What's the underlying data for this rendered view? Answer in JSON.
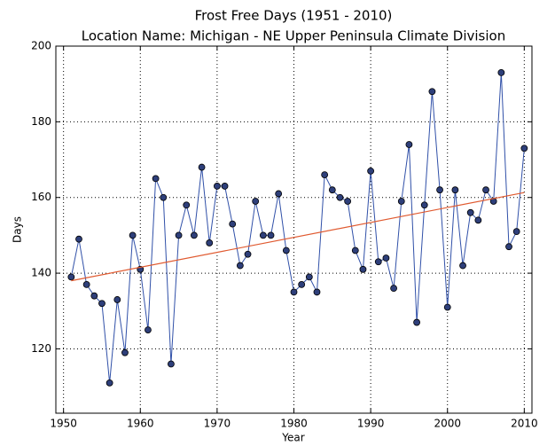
{
  "chart_data": {
    "type": "line",
    "title": "Frost Free Days (1951 - 2010)",
    "subtitle": "Location Name: Michigan - NE Upper Peninsula Climate Division",
    "x_label": "Year",
    "y_label": "Days",
    "x": [
      1951,
      1952,
      1953,
      1954,
      1955,
      1956,
      1957,
      1958,
      1959,
      1960,
      1961,
      1962,
      1963,
      1964,
      1965,
      1966,
      1967,
      1968,
      1969,
      1970,
      1971,
      1972,
      1973,
      1974,
      1975,
      1976,
      1977,
      1978,
      1979,
      1980,
      1981,
      1982,
      1983,
      1984,
      1985,
      1986,
      1987,
      1988,
      1989,
      1990,
      1991,
      1992,
      1993,
      1994,
      1995,
      1996,
      1997,
      1998,
      1999,
      2000,
      2001,
      2002,
      2003,
      2004,
      2005,
      2006,
      2007,
      2008,
      2009,
      2010
    ],
    "series": [
      {
        "color": "#3050a8",
        "marker_color": "#2e3f7a",
        "values": [
          139,
          149,
          137,
          134,
          132,
          111,
          133,
          119,
          150,
          141,
          125,
          165,
          160,
          116,
          150,
          158,
          150,
          168,
          148,
          163,
          163,
          153,
          142,
          145,
          159,
          150,
          150,
          161,
          146,
          135,
          137,
          139,
          135,
          166,
          162,
          160,
          159,
          146,
          141,
          167,
          143,
          144,
          136,
          159,
          174,
          127,
          158,
          188,
          162,
          131,
          162,
          142,
          156,
          154,
          162,
          159,
          193,
          147,
          151,
          173
        ]
      }
    ],
    "trend": {
      "color": "#e05a30",
      "x": [
        1951,
        2010
      ],
      "values": [
        138,
        161.3
      ]
    },
    "xlim": [
      1949,
      2011
    ],
    "ylim": [
      103,
      200
    ],
    "xticks": [
      1950,
      1960,
      1970,
      1980,
      1990,
      2000,
      2010
    ],
    "yticks": [
      120,
      140,
      160,
      180,
      200
    ],
    "grid": true
  }
}
